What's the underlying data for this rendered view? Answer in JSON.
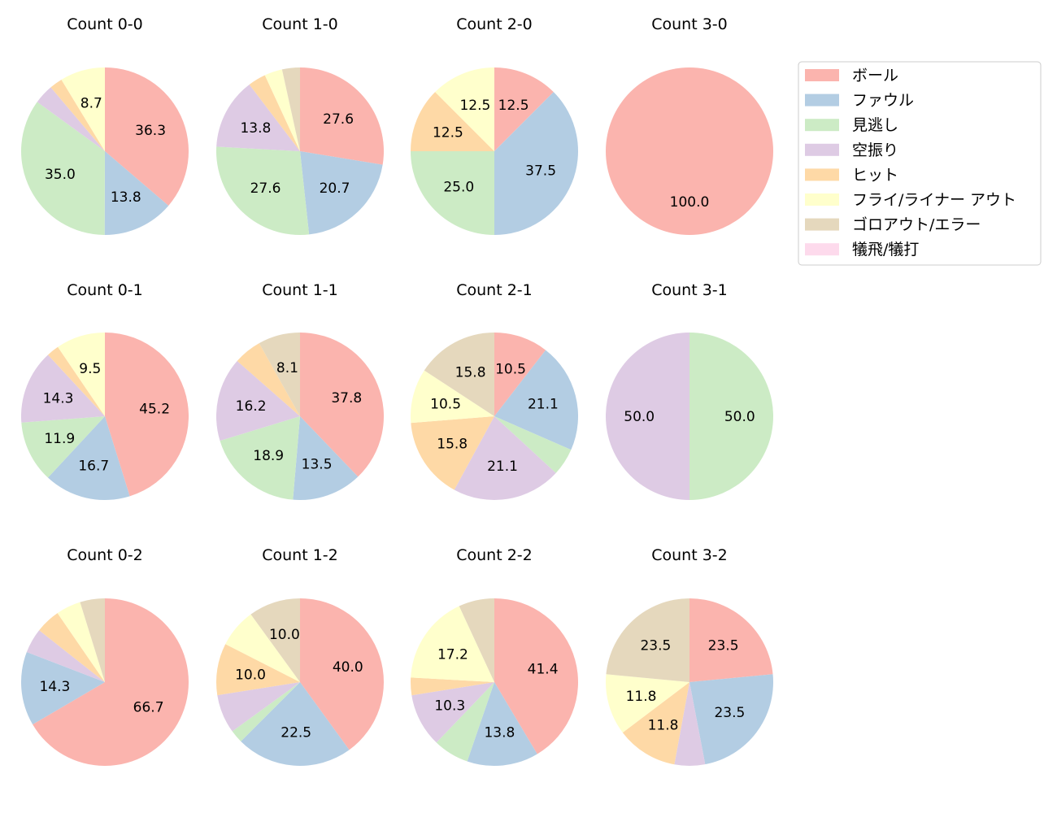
{
  "chart_data": {
    "type": "pie",
    "categories": [
      "ボール",
      "ファウル",
      "見逃し",
      "空振り",
      "ヒット",
      "フライ/ライナー アウト",
      "ゴロアウト/エラー",
      "犠飛/犠打"
    ],
    "colors": [
      "#fbb4ae",
      "#b3cde3",
      "#ccebc5",
      "#decbe4",
      "#fed9a6",
      "#ffffcc",
      "#e5d8bd",
      "#fddaec"
    ],
    "legend_position": "top-right",
    "charts": [
      {
        "title": "Count 0-0",
        "values": [
          36.3,
          13.8,
          35.0,
          3.8,
          2.5,
          8.7,
          0,
          0
        ],
        "labels": [
          "36.3",
          "13.8",
          "35.0",
          "",
          "",
          "8.7",
          "",
          ""
        ]
      },
      {
        "title": "Count 1-0",
        "values": [
          27.6,
          20.7,
          27.6,
          13.8,
          3.45,
          3.45,
          3.45,
          0
        ],
        "labels": [
          "27.6",
          "20.7",
          "27.6",
          "13.8",
          "",
          "",
          "",
          ""
        ]
      },
      {
        "title": "Count 2-0",
        "values": [
          12.5,
          37.5,
          25.0,
          0,
          12.5,
          12.5,
          0,
          0
        ],
        "labels": [
          "12.5",
          "37.5",
          "25.0",
          "",
          "12.5",
          "12.5",
          "",
          ""
        ]
      },
      {
        "title": "Count 3-0",
        "values": [
          100.0,
          0,
          0,
          0,
          0,
          0,
          0,
          0
        ],
        "labels": [
          "100.0",
          "",
          "",
          "",
          "",
          "",
          "",
          ""
        ]
      },
      {
        "title": "Count 0-1",
        "values": [
          45.2,
          16.7,
          11.9,
          14.3,
          2.4,
          9.5,
          0,
          0
        ],
        "labels": [
          "45.2",
          "16.7",
          "11.9",
          "14.3",
          "",
          "9.5",
          "",
          ""
        ]
      },
      {
        "title": "Count 1-1",
        "values": [
          37.8,
          13.5,
          18.9,
          16.2,
          5.4,
          0,
          8.1,
          0
        ],
        "labels": [
          "37.8",
          "13.5",
          "18.9",
          "16.2",
          "",
          "",
          "8.1",
          ""
        ]
      },
      {
        "title": "Count 2-1",
        "values": [
          10.5,
          21.1,
          5.3,
          21.1,
          15.8,
          10.5,
          15.8,
          0
        ],
        "labels": [
          "10.5",
          "21.1",
          "",
          "21.1",
          "15.8",
          "10.5",
          "15.8",
          ""
        ]
      },
      {
        "title": "Count 3-1",
        "values": [
          0,
          0,
          50.0,
          50.0,
          0,
          0,
          0,
          0
        ],
        "labels": [
          "",
          "",
          "50.0",
          "50.0",
          "",
          "",
          "",
          ""
        ]
      },
      {
        "title": "Count 0-2",
        "values": [
          66.7,
          14.3,
          0,
          4.8,
          4.8,
          4.8,
          4.8,
          0
        ],
        "labels": [
          "66.7",
          "14.3",
          "",
          "",
          "",
          "",
          "",
          ""
        ]
      },
      {
        "title": "Count 1-2",
        "values": [
          40.0,
          22.5,
          2.5,
          7.5,
          10.0,
          7.5,
          10.0,
          0
        ],
        "labels": [
          "40.0",
          "22.5",
          "",
          "",
          "10.0",
          "",
          "10.0",
          ""
        ]
      },
      {
        "title": "Count 2-2",
        "values": [
          41.4,
          13.8,
          6.9,
          10.3,
          3.4,
          17.2,
          6.9,
          0
        ],
        "labels": [
          "41.4",
          "13.8",
          "",
          "10.3",
          "",
          "17.2",
          "",
          ""
        ]
      },
      {
        "title": "Count 3-2",
        "values": [
          23.5,
          23.5,
          0,
          5.9,
          11.8,
          11.8,
          23.5,
          0
        ],
        "labels": [
          "23.5",
          "23.5",
          "",
          "",
          "11.8",
          "11.8",
          "23.5",
          ""
        ]
      }
    ]
  }
}
